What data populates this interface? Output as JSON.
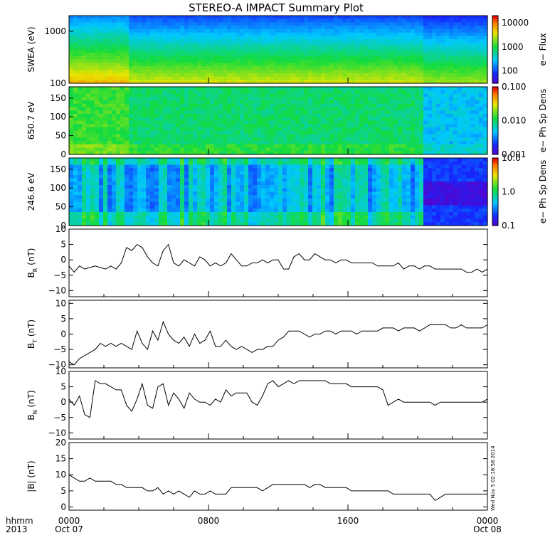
{
  "title": "STEREO-A IMPACT Summary Plot",
  "chart_data": [
    {
      "type": "heatmap",
      "id": "swea",
      "ylabel": "SWEA (eV)",
      "yscale": "log",
      "yticks": [
        100,
        1000
      ],
      "ytick_labels": [
        "100",
        "1000"
      ],
      "ylim": [
        100,
        2000
      ],
      "colorbar": {
        "label": "e− Flux",
        "scale": "log",
        "ticks": [
          "100",
          "1000",
          "10000"
        ],
        "range": [
          30,
          20000
        ]
      },
      "colors": {
        "low": "#1020ff",
        "mid": "#00d040",
        "high": "#f0e000"
      }
    },
    {
      "type": "heatmap",
      "id": "pad650",
      "ylabel": "650.7 eV",
      "yticks": [
        0,
        50,
        100,
        150
      ],
      "ytick_labels": [
        "0",
        "50",
        "100",
        "150"
      ],
      "ylim": [
        0,
        180
      ],
      "colorbar": {
        "label": "e− Ph Sp Dens",
        "scale": "log",
        "ticks": [
          "0.001",
          "0.010",
          "0.100"
        ],
        "range": [
          0.001,
          0.1
        ]
      }
    },
    {
      "type": "heatmap",
      "id": "pad246",
      "ylabel": "246.6 eV",
      "yticks": [
        0,
        50,
        100,
        150
      ],
      "ytick_labels": [
        "0",
        "50",
        "100",
        "150"
      ],
      "ylim": [
        0,
        180
      ],
      "colorbar": {
        "label": "e− Ph Sp Dens",
        "scale": "log",
        "ticks": [
          "0.1",
          "1.0",
          "10.0"
        ],
        "range": [
          0.1,
          10
        ]
      }
    },
    {
      "type": "line",
      "id": "br",
      "ylabel": "BR (nT)",
      "ylabel_main": "B",
      "ylabel_sub": "R",
      "ylabel_unit": "(nT)",
      "ylim": [
        -12,
        10
      ],
      "yticks": [
        -10,
        -5,
        0,
        5,
        10
      ],
      "ytick_labels": [
        "−10",
        "−5",
        "0",
        "5",
        "10"
      ],
      "x": [
        0,
        0.3,
        0.6,
        0.9,
        1.2,
        1.5,
        1.8,
        2.1,
        2.4,
        2.7,
        3.0,
        3.3,
        3.6,
        3.9,
        4.2,
        4.5,
        4.8,
        5.1,
        5.4,
        5.7,
        6.0,
        6.3,
        6.6,
        6.9,
        7.2,
        7.5,
        7.8,
        8.1,
        8.4,
        8.7,
        9.0,
        9.3,
        9.6,
        9.9,
        10.2,
        10.5,
        10.8,
        11.1,
        11.4,
        11.7,
        12.0,
        12.3,
        12.6,
        12.9,
        13.2,
        13.5,
        13.8,
        14.1,
        14.4,
        14.7,
        15.0,
        15.3,
        15.6,
        15.9,
        16.2,
        16.5,
        16.8,
        17.1,
        17.4,
        17.7,
        18.0,
        18.3,
        18.6,
        18.9,
        19.2,
        19.5,
        19.8,
        20.1,
        20.4,
        20.7,
        21.0,
        21.3,
        21.6,
        21.9,
        22.2,
        22.5,
        22.8,
        23.1,
        23.4,
        23.7,
        24.0
      ],
      "y": [
        -2,
        -4,
        -2,
        -3,
        -2.5,
        -2,
        -2.5,
        -3,
        -2,
        -3,
        -1,
        4,
        3,
        5,
        4,
        1,
        -1,
        -2,
        3,
        5,
        -1,
        -2,
        0,
        -1,
        -2,
        1,
        0,
        -2,
        -1,
        -2,
        -1,
        2,
        0,
        -2,
        -2,
        -1,
        -1,
        0,
        -1,
        0,
        0,
        -3,
        -3,
        1,
        2,
        0,
        0,
        2,
        1,
        0,
        0,
        -1,
        0,
        0,
        -1,
        -1,
        -1,
        -1,
        -1,
        -2,
        -2,
        -2,
        -2,
        -1,
        -3,
        -2,
        -2,
        -3,
        -2,
        -2,
        -3,
        -3,
        -3,
        -3,
        -3,
        -3,
        -4,
        -4,
        -3,
        -4,
        -3
      ]
    },
    {
      "type": "line",
      "id": "bt",
      "ylabel": "BT (nT)",
      "ylabel_main": "B",
      "ylabel_sub": "T",
      "ylabel_unit": "(nT)",
      "ylim": [
        -11,
        11
      ],
      "yticks": [
        -10,
        -5,
        0,
        5,
        10
      ],
      "ytick_labels": [
        "−10",
        "−5",
        "0",
        "5",
        "10"
      ],
      "x": [
        0,
        0.3,
        0.6,
        0.9,
        1.2,
        1.5,
        1.8,
        2.1,
        2.4,
        2.7,
        3.0,
        3.3,
        3.6,
        3.9,
        4.2,
        4.5,
        4.8,
        5.1,
        5.4,
        5.7,
        6.0,
        6.3,
        6.6,
        6.9,
        7.2,
        7.5,
        7.8,
        8.1,
        8.4,
        8.7,
        9.0,
        9.3,
        9.6,
        9.9,
        10.2,
        10.5,
        10.8,
        11.1,
        11.4,
        11.7,
        12.0,
        12.3,
        12.6,
        12.9,
        13.2,
        13.5,
        13.8,
        14.1,
        14.4,
        14.7,
        15.0,
        15.3,
        15.6,
        15.9,
        16.2,
        16.5,
        16.8,
        17.1,
        17.4,
        17.7,
        18.0,
        18.3,
        18.6,
        18.9,
        19.2,
        19.5,
        19.8,
        20.1,
        20.4,
        20.7,
        21.0,
        21.3,
        21.6,
        21.9,
        22.2,
        22.5,
        22.8,
        23.1,
        23.4,
        23.7,
        24.0
      ],
      "y": [
        -9,
        -10,
        -8,
        -7,
        -6,
        -5,
        -3,
        -4,
        -3,
        -4,
        -3,
        -4,
        -5,
        1,
        -3,
        -5,
        1,
        -2,
        4,
        0,
        -2,
        -3,
        -1,
        -4,
        0,
        -3,
        -2,
        1,
        -4,
        -4,
        -2,
        -4,
        -5,
        -4,
        -5,
        -6,
        -5,
        -5,
        -4,
        -4,
        -2,
        -1,
        1,
        1,
        1,
        0,
        -1,
        0,
        0,
        1,
        1,
        0,
        1,
        1,
        1,
        0,
        1,
        1,
        1,
        1,
        2,
        2,
        2,
        1,
        2,
        2,
        2,
        1,
        2,
        3,
        3,
        3,
        3,
        2,
        2,
        3,
        2,
        2,
        2,
        2,
        3
      ]
    },
    {
      "type": "line",
      "id": "bn",
      "ylabel": "BN (nT)",
      "ylabel_main": "B",
      "ylabel_sub": "N",
      "ylabel_unit": "(nT)",
      "ylim": [
        -12,
        10
      ],
      "yticks": [
        -10,
        -5,
        0,
        5,
        10
      ],
      "ytick_labels": [
        "−10",
        "−5",
        "0",
        "5",
        "10"
      ],
      "x": [
        0,
        0.3,
        0.6,
        0.9,
        1.2,
        1.5,
        1.8,
        2.1,
        2.4,
        2.7,
        3.0,
        3.3,
        3.6,
        3.9,
        4.2,
        4.5,
        4.8,
        5.1,
        5.4,
        5.7,
        6.0,
        6.3,
        6.6,
        6.9,
        7.2,
        7.5,
        7.8,
        8.1,
        8.4,
        8.7,
        9.0,
        9.3,
        9.6,
        9.9,
        10.2,
        10.5,
        10.8,
        11.1,
        11.4,
        11.7,
        12.0,
        12.3,
        12.6,
        12.9,
        13.2,
        13.5,
        13.8,
        14.1,
        14.4,
        14.7,
        15.0,
        15.3,
        15.6,
        15.9,
        16.2,
        16.5,
        16.8,
        17.1,
        17.4,
        17.7,
        18.0,
        18.3,
        18.6,
        18.9,
        19.2,
        19.5,
        19.8,
        20.1,
        20.4,
        20.7,
        21.0,
        21.3,
        21.6,
        21.9,
        22.2,
        22.5,
        22.8,
        23.1,
        23.4,
        23.7,
        24.0
      ],
      "y": [
        1,
        -1,
        2,
        -4,
        -5,
        7,
        6,
        6,
        5,
        4,
        4,
        -1,
        -3,
        1,
        6,
        -1,
        -2,
        5,
        6,
        -1,
        3,
        1,
        -2,
        3,
        1,
        0,
        0,
        -1,
        1,
        0,
        4,
        2,
        3,
        3,
        3,
        0,
        -1,
        2,
        6,
        7,
        5,
        6,
        7,
        6,
        7,
        7,
        7,
        7,
        7,
        7,
        6,
        6,
        6,
        6,
        5,
        5,
        5,
        5,
        5,
        5,
        4,
        -1,
        0,
        1,
        0,
        0,
        0,
        0,
        0,
        0,
        -1,
        0,
        0,
        0,
        0,
        0,
        0,
        0,
        0,
        0,
        1
      ]
    },
    {
      "type": "line",
      "id": "bmag",
      "ylabel": "|B| (nT)",
      "ylabel_main": "|B|",
      "ylabel_sub": "",
      "ylabel_unit": "(nT)",
      "ylim": [
        -1,
        20
      ],
      "yticks": [
        0,
        5,
        10,
        15,
        20
      ],
      "ytick_labels": [
        "0",
        "5",
        "10",
        "15",
        "20"
      ],
      "x": [
        0,
        0.3,
        0.6,
        0.9,
        1.2,
        1.5,
        1.8,
        2.1,
        2.4,
        2.7,
        3.0,
        3.3,
        3.6,
        3.9,
        4.2,
        4.5,
        4.8,
        5.1,
        5.4,
        5.7,
        6.0,
        6.3,
        6.6,
        6.9,
        7.2,
        7.5,
        7.8,
        8.1,
        8.4,
        8.7,
        9.0,
        9.3,
        9.6,
        9.9,
        10.2,
        10.5,
        10.8,
        11.1,
        11.4,
        11.7,
        12.0,
        12.3,
        12.6,
        12.9,
        13.2,
        13.5,
        13.8,
        14.1,
        14.4,
        14.7,
        15.0,
        15.3,
        15.6,
        15.9,
        16.2,
        16.5,
        16.8,
        17.1,
        17.4,
        17.7,
        18.0,
        18.3,
        18.6,
        18.9,
        19.2,
        19.5,
        19.8,
        20.1,
        20.4,
        20.7,
        21.0,
        21.3,
        21.6,
        21.9,
        22.2,
        22.5,
        22.8,
        23.1,
        23.4,
        23.7,
        24.0
      ],
      "y": [
        10,
        9,
        8,
        8,
        9,
        8,
        8,
        8,
        8,
        7,
        7,
        6,
        6,
        6,
        6,
        5,
        5,
        6,
        4,
        5,
        4,
        5,
        4,
        3,
        5,
        4,
        4,
        5,
        4,
        4,
        4,
        6,
        6,
        6,
        6,
        6,
        6,
        5,
        6,
        7,
        7,
        7,
        7,
        7,
        7,
        7,
        6,
        7,
        7,
        6,
        6,
        6,
        6,
        6,
        5,
        5,
        5,
        5,
        5,
        5,
        5,
        5,
        4,
        4,
        4,
        4,
        4,
        4,
        4,
        4,
        2,
        3,
        4,
        4,
        4,
        4,
        4,
        4,
        4,
        4,
        4
      ]
    }
  ],
  "xaxis": {
    "prefix_line1": "hhmm",
    "prefix_line2": "2013",
    "ticks": [
      {
        "hour": 0,
        "label": "0000",
        "date": "Oct 07"
      },
      {
        "hour": 8,
        "label": "0800",
        "date": ""
      },
      {
        "hour": 16,
        "label": "1600",
        "date": ""
      },
      {
        "hour": 24,
        "label": "0000",
        "date": "Oct 08"
      }
    ],
    "range": [
      0,
      24
    ]
  },
  "timestamp": "Wed Nov 5 02:18:58 2014"
}
